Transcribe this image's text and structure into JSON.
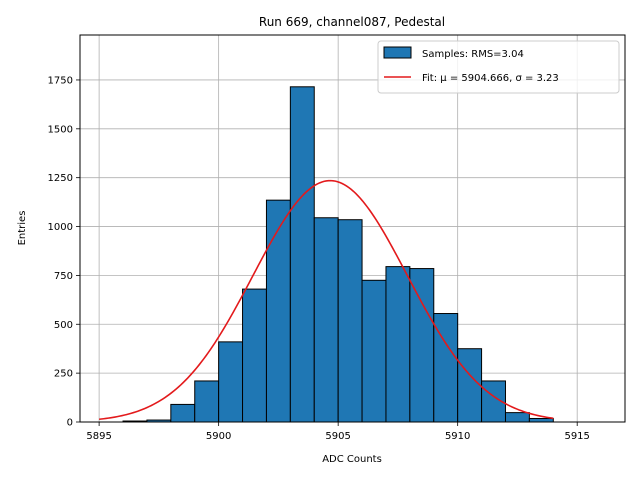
{
  "chart_data": {
    "type": "bar",
    "title": "Run 669, channel087, Pedestal",
    "xlabel": "ADC Counts",
    "ylabel": "Entries",
    "xlim": [
      5894.2,
      5917.0
    ],
    "ylim": [
      0,
      1980
    ],
    "grid": true,
    "legend_position": "top-right",
    "xticks": [
      5895,
      5900,
      5905,
      5910,
      5915
    ],
    "yticks": [
      0,
      250,
      500,
      750,
      1000,
      1250,
      1500,
      1750
    ],
    "bins": {
      "edges": [
        5896,
        5897,
        5898,
        5899,
        5900,
        5901,
        5902,
        5903,
        5904,
        5905,
        5906,
        5907,
        5908,
        5909,
        5910,
        5911,
        5912,
        5913,
        5914
      ],
      "values": [
        5,
        10,
        90,
        210,
        410,
        680,
        1135,
        1715,
        1045,
        1035,
        725,
        795,
        785,
        555,
        375,
        210,
        48,
        18
      ]
    },
    "fit": {
      "mu": 5904.666,
      "sigma": 3.23,
      "amplitude": 1235,
      "x_range": [
        5895,
        5914
      ]
    },
    "series": [
      {
        "name": "Samples: RMS=3.04",
        "color": "#1f77b4",
        "edge_color": "#000000"
      },
      {
        "name": "Fit: μ = 5904.666, σ = 3.23",
        "color": "#e31a1c"
      }
    ]
  }
}
